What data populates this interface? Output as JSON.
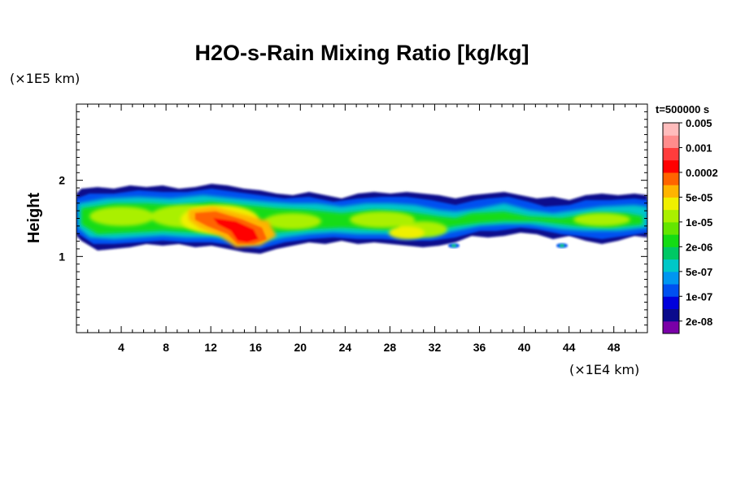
{
  "chart_data": {
    "type": "heatmap",
    "title": "H2O-s-Rain Mixing Ratio [kg/kg]",
    "ylabel": "Height",
    "x_unit": "(×1E4 km)",
    "y_unit": "(×1E5 km)",
    "time_label": "t=500000 s",
    "xlim": [
      0,
      51
    ],
    "ylim": [
      0,
      3
    ],
    "x_ticks": [
      "4",
      "8",
      "12",
      "16",
      "20",
      "24",
      "28",
      "32",
      "36",
      "40",
      "44",
      "48"
    ],
    "x_tick_values": [
      4,
      8,
      12,
      16,
      20,
      24,
      28,
      32,
      36,
      40,
      44,
      48
    ],
    "y_ticks": [
      "1",
      "2"
    ],
    "y_tick_values": [
      1,
      2
    ],
    "colorbar": {
      "colors": [
        "#7a00a8",
        "#0a0a8c",
        "#0000dc",
        "#0050f0",
        "#0096f0",
        "#00c8c8",
        "#00c864",
        "#14dc14",
        "#64e600",
        "#aaf000",
        "#f0f000",
        "#ffb400",
        "#ff6400",
        "#ff0000",
        "#ff3c3c",
        "#ff8c8c",
        "#ffbcbc"
      ],
      "labels": [
        "2e-08",
        "1e-07",
        "5e-07",
        "2e-06",
        "1e-05",
        "5e-05",
        "0.0002",
        "0.001",
        "0.005"
      ]
    },
    "field_description": "Rain mixing ratio band spanning roughly height 1.1–1.9 (×1E5 km) across the full x range, with a red/orange core (0.001–0.005) near x≈10–17 and smaller isolated cells near x≈34 and x≈43.5"
  }
}
